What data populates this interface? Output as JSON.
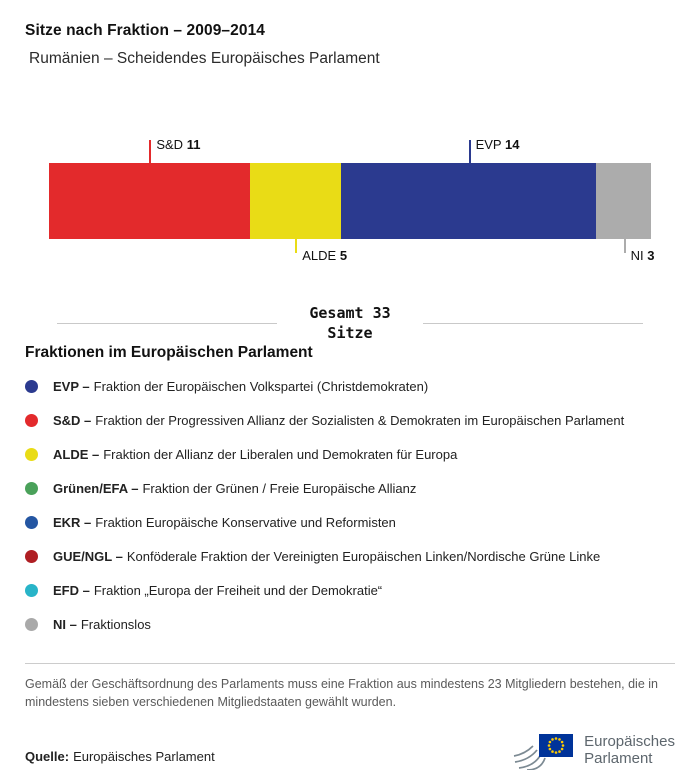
{
  "header": {
    "title": "Sitze nach Fraktion – 2009–2014",
    "subtitle": "Rumänien – Scheidendes Europäisches Parlament"
  },
  "chart_data": {
    "type": "bar",
    "variant": "stacked-horizontal",
    "title": "Sitze nach Fraktion – 2009–2014",
    "total": 33,
    "categories": [
      "S&D",
      "ALDE",
      "EVP",
      "NI"
    ],
    "values": [
      11,
      5,
      14,
      3
    ],
    "segments": [
      {
        "label": "S&D",
        "value": 11,
        "color": "#e32a2c",
        "callout": "top"
      },
      {
        "label": "ALDE",
        "value": 5,
        "color": "#e9dc16",
        "callout": "bottom"
      },
      {
        "label": "EVP",
        "value": 14,
        "color": "#2b3a8f",
        "callout": "top"
      },
      {
        "label": "NI",
        "value": 3,
        "color": "#acacac",
        "callout": "bottom"
      }
    ],
    "legend_position": "bottom",
    "grid": false
  },
  "total": {
    "line1": "Gesamt 33",
    "line2": "Sitze"
  },
  "legend": {
    "heading": "Fraktionen im Europäischen Parlament",
    "items": [
      {
        "abbr": "EVP –",
        "label": "Fraktion der Europäischen Volkspartei (Christdemokraten)",
        "color": "#2b3a8f"
      },
      {
        "abbr": "S&D –",
        "label": "Fraktion der Progressiven Allianz der Sozialisten & Demokraten im Europäischen Parlament",
        "color": "#e32a2c"
      },
      {
        "abbr": "ALDE –",
        "label": "Fraktion der Allianz der Liberalen und Demokraten für Europa",
        "color": "#e9dc16"
      },
      {
        "abbr": "Grünen/EFA –",
        "label": "Fraktion der Grünen / Freie Europäische Allianz",
        "color": "#4aa15a"
      },
      {
        "abbr": "EKR –",
        "label": "Fraktion Europäische Konservative und Reformisten",
        "color": "#2456a2"
      },
      {
        "abbr": "GUE/NGL –",
        "label": "Konföderale Fraktion der Vereinigten Europäischen Linken/Nordische Grüne Linke",
        "color": "#af1e23"
      },
      {
        "abbr": "EFD –",
        "label": "Fraktion „Europa der Freiheit und der Demokratie“",
        "color": "#28b4c8"
      },
      {
        "abbr": "NI –",
        "label": "Fraktionslos",
        "color": "#a9a9a9"
      }
    ]
  },
  "footnote": "Gemäß der Geschäftsordnung des Parlaments muss eine Fraktion aus mindestens 23 Mitgliedern bestehen, die in mindestens sieben verschiedenen Mitgliedstaaten gewählt wurden.",
  "source": {
    "label": "Quelle:",
    "text": "Europäisches Parlament"
  },
  "logo": {
    "line1": "Europäisches",
    "line2": "Parlament"
  }
}
